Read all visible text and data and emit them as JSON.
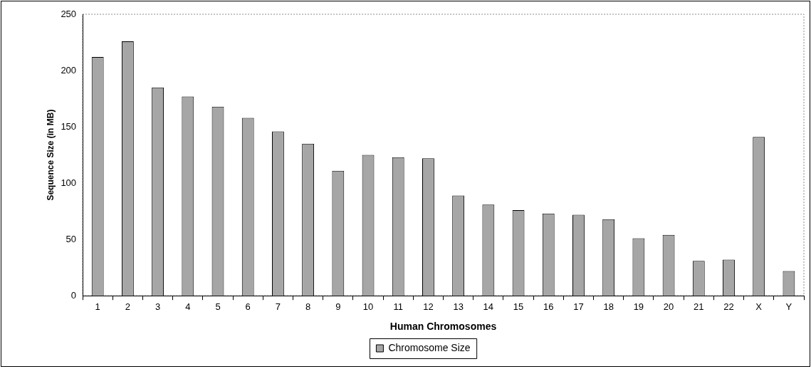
{
  "chart_data": {
    "type": "bar",
    "xlabel": "Human Chromosomes",
    "ylabel": "Sequence Size (in MB)",
    "categories": [
      "1",
      "2",
      "3",
      "4",
      "5",
      "6",
      "7",
      "8",
      "9",
      "10",
      "11",
      "12",
      "13",
      "14",
      "15",
      "16",
      "17",
      "18",
      "19",
      "20",
      "21",
      "22",
      "X",
      "Y"
    ],
    "series": [
      {
        "name": "Chromosome Size",
        "color": "#a6a6a6",
        "values": [
          212,
          226,
          185,
          177,
          168,
          158,
          146,
          135,
          111,
          125,
          123,
          122,
          89,
          81,
          76,
          73,
          72,
          68,
          51,
          54,
          31,
          32,
          141,
          22
        ]
      }
    ],
    "ylim": [
      0,
      250
    ],
    "yticks": [
      0,
      50,
      100,
      150,
      200,
      250
    ],
    "grid": false,
    "legend": "bottom"
  }
}
